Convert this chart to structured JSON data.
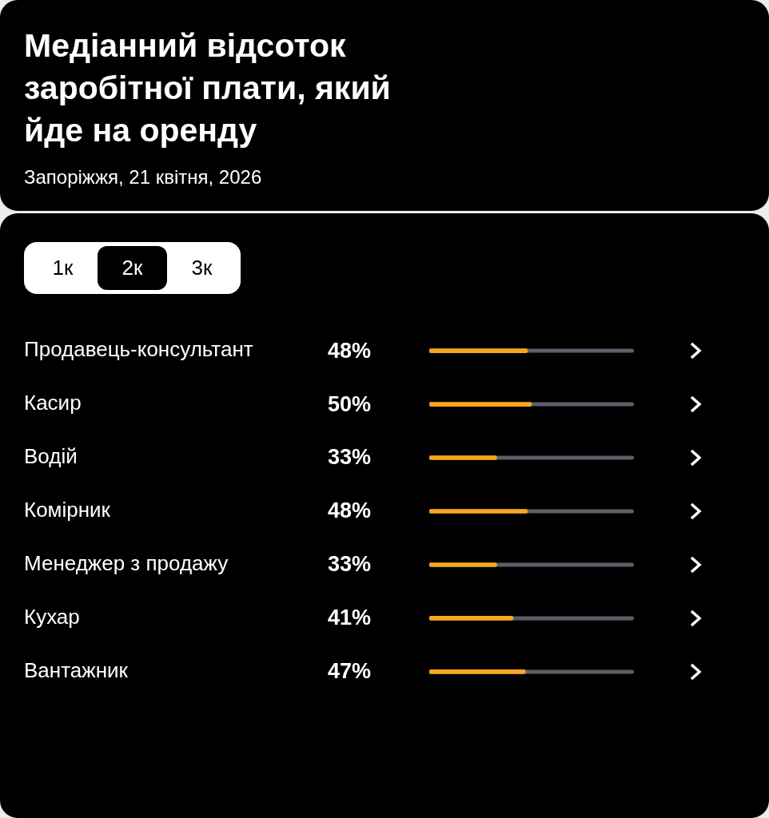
{
  "chart_data": {
    "type": "bar",
    "orientation": "horizontal",
    "title": "Медіанний відсоток заробітної плати, який йде на оренду",
    "subtitle": "Запоріжжя, 21 квітня, 2026",
    "annotations": [
      "1к",
      "2к",
      "3к"
    ],
    "categories": [
      "Продавець-консультант",
      "Касир",
      "Водій",
      "Комірник",
      "Менеджер з продажу",
      "Кухар",
      "Вантажник"
    ],
    "values": [
      48,
      50,
      33,
      48,
      33,
      41,
      47
    ],
    "value_labels": [
      "48%",
      "50%",
      "33%",
      "48%",
      "33%",
      "41%",
      "47%"
    ],
    "color": "#f7a81b",
    "xlim": [
      0,
      100
    ],
    "tick_labels": "y",
    "legend": false
  }
}
